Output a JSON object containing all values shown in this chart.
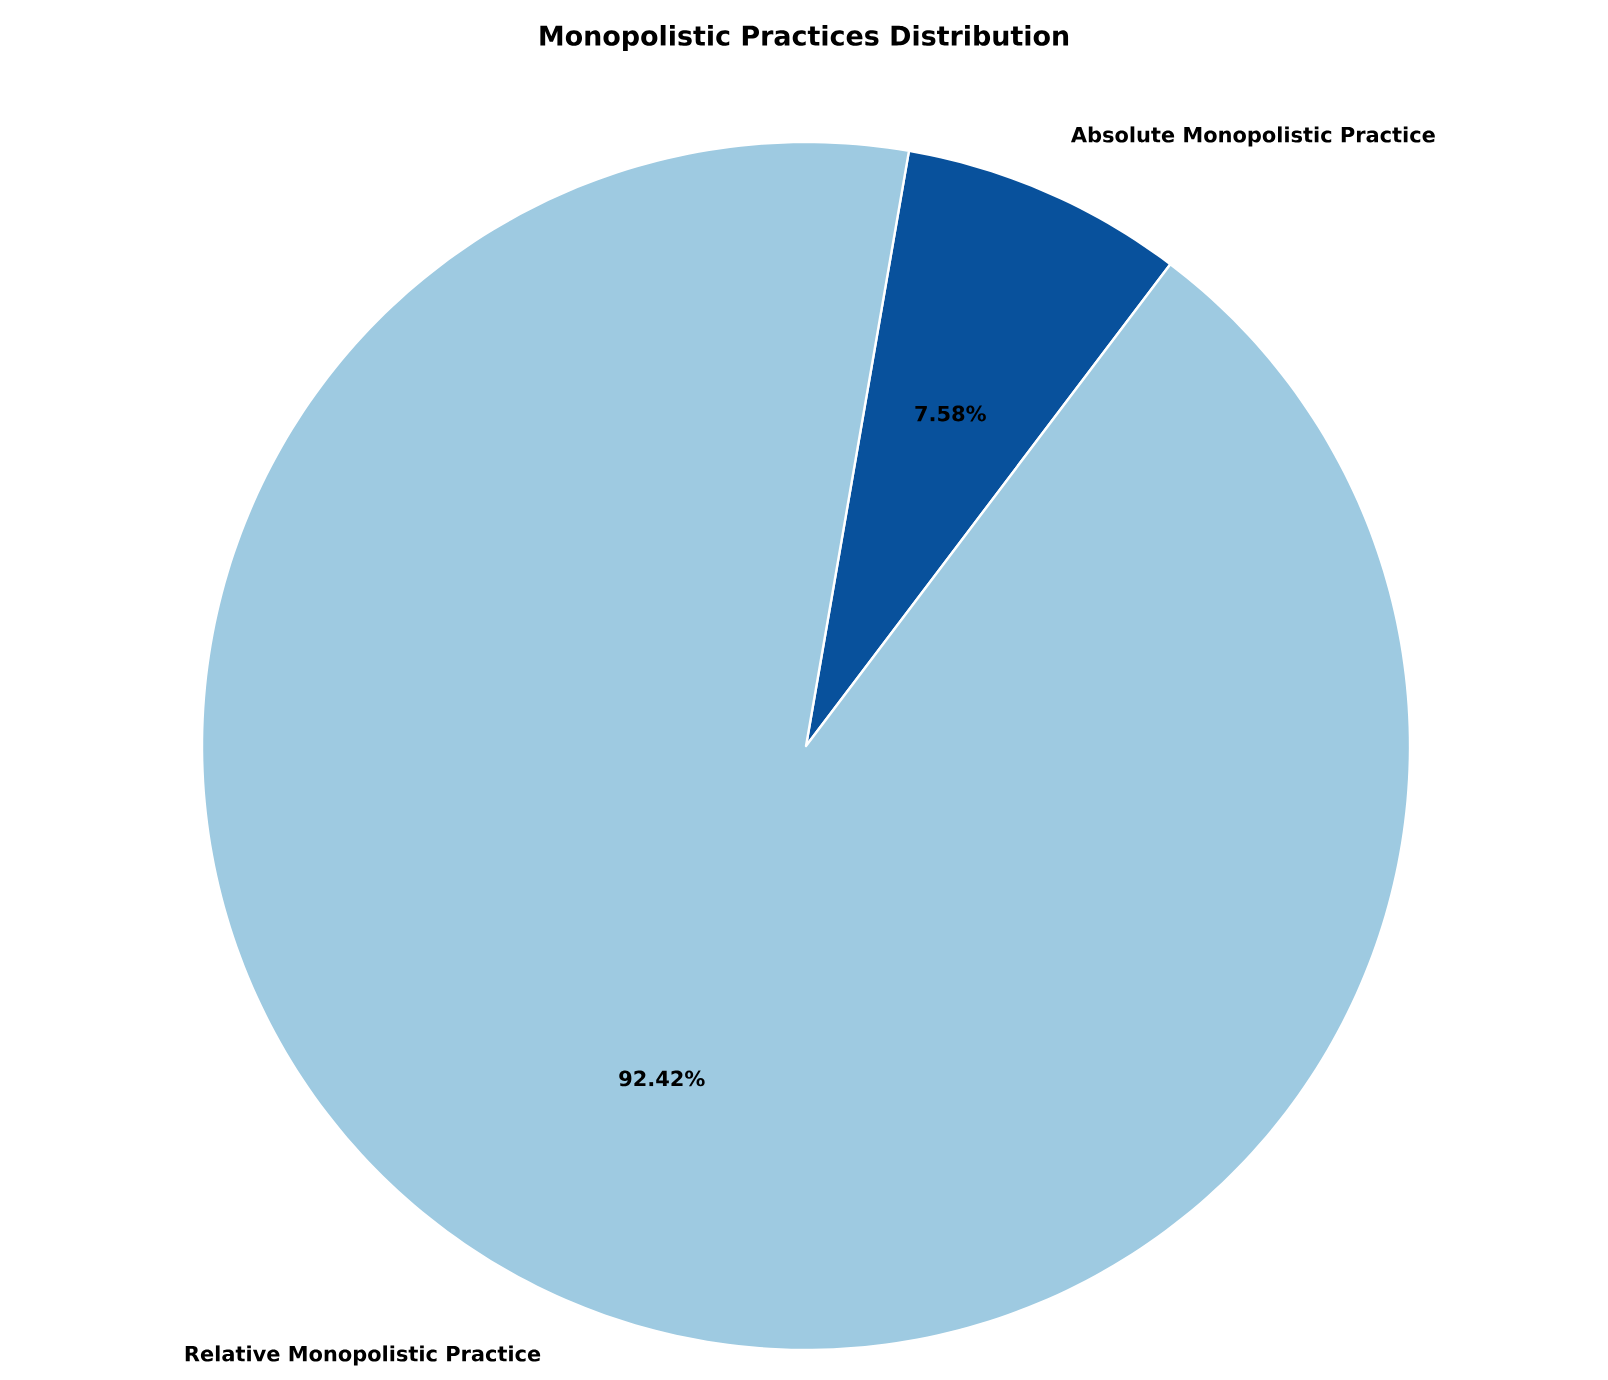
{
  "chart_data": {
    "type": "pie",
    "title": "Monopolistic Practices Distribution",
    "categories": [
      "Absolute Monopolistic Practice",
      "Relative Monopolistic Practice"
    ],
    "values": [
      7.58,
      92.42
    ],
    "colors": [
      "#08519c",
      "#9ecae1"
    ],
    "value_labels": [
      "7.58%",
      "92.42%"
    ]
  }
}
